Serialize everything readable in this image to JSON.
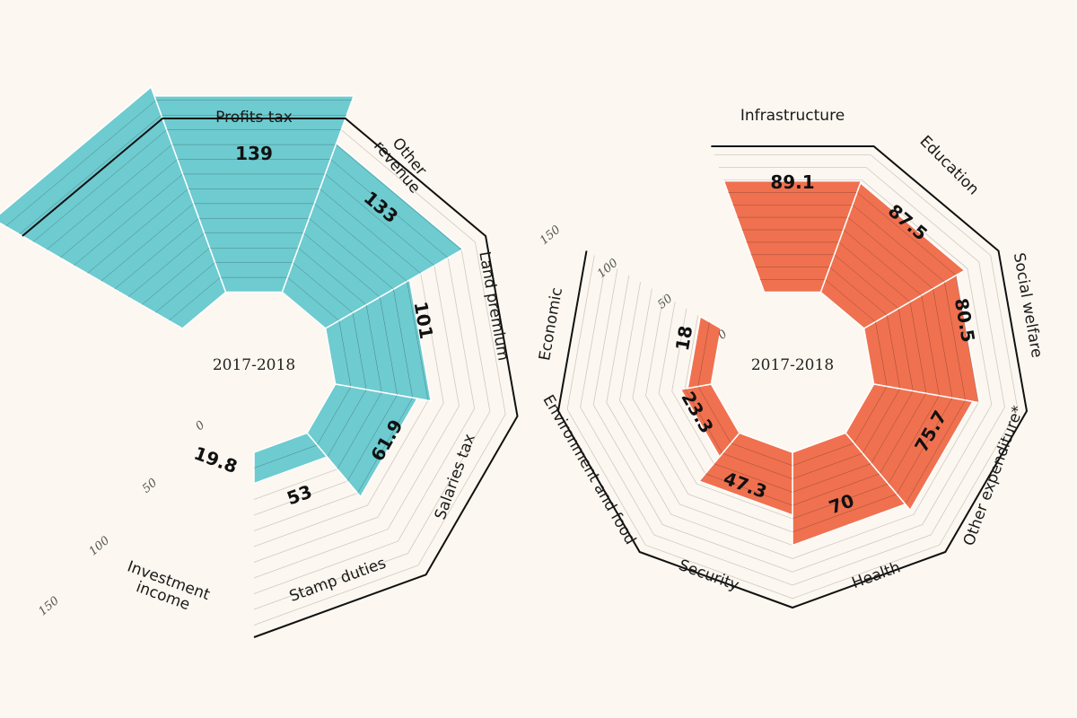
{
  "colors": {
    "background": "#fcf7f0",
    "revenue": "#6ecbd0",
    "expenditure": "#f0714f",
    "grid": "#cfcac2",
    "outline": "#111111"
  },
  "chart_data": [
    {
      "type": "radial-bar",
      "center_label": "2017-2018",
      "max": 160,
      "tick_values": [
        0,
        50,
        100,
        150
      ],
      "tick_labels": [
        "0",
        "50",
        "100",
        "150"
      ],
      "categories": [
        {
          "label": "Profits tax",
          "value": 139,
          "value_label": "139"
        },
        {
          "label": "Other\nrevenue",
          "value": 133,
          "value_label": "133"
        },
        {
          "label": "Land premium",
          "value": 101,
          "value_label": "101"
        },
        {
          "label": "Salaries tax",
          "value": 61.9,
          "value_label": "61.9"
        },
        {
          "label": "Stamp duties",
          "value": 53,
          "value_label": "53"
        },
        {
          "label": "Investment\nincome",
          "value": 19.8,
          "value_label": "19.8"
        }
      ]
    },
    {
      "type": "radial-bar",
      "center_label": "2017-2018",
      "max": 160,
      "tick_values": [
        0,
        50,
        100,
        150
      ],
      "tick_labels": [
        "0",
        "50",
        "100",
        "150"
      ],
      "categories": [
        {
          "label": "Infrastructure",
          "value": 89.1,
          "value_label": "89.1"
        },
        {
          "label": "Education",
          "value": 87.5,
          "value_label": "87.5"
        },
        {
          "label": "Social welfare",
          "value": 80.5,
          "value_label": "80.5"
        },
        {
          "label": "Other expenditure*",
          "value": 75.7,
          "value_label": "75.7"
        },
        {
          "label": "Health",
          "value": 70,
          "value_label": "70"
        },
        {
          "label": "Security",
          "value": 47.3,
          "value_label": "47.3"
        },
        {
          "label": "Environment and food",
          "value": 23.3,
          "value_label": "23.3"
        },
        {
          "label": "Economic",
          "value": 18,
          "value_label": "18"
        }
      ]
    }
  ]
}
